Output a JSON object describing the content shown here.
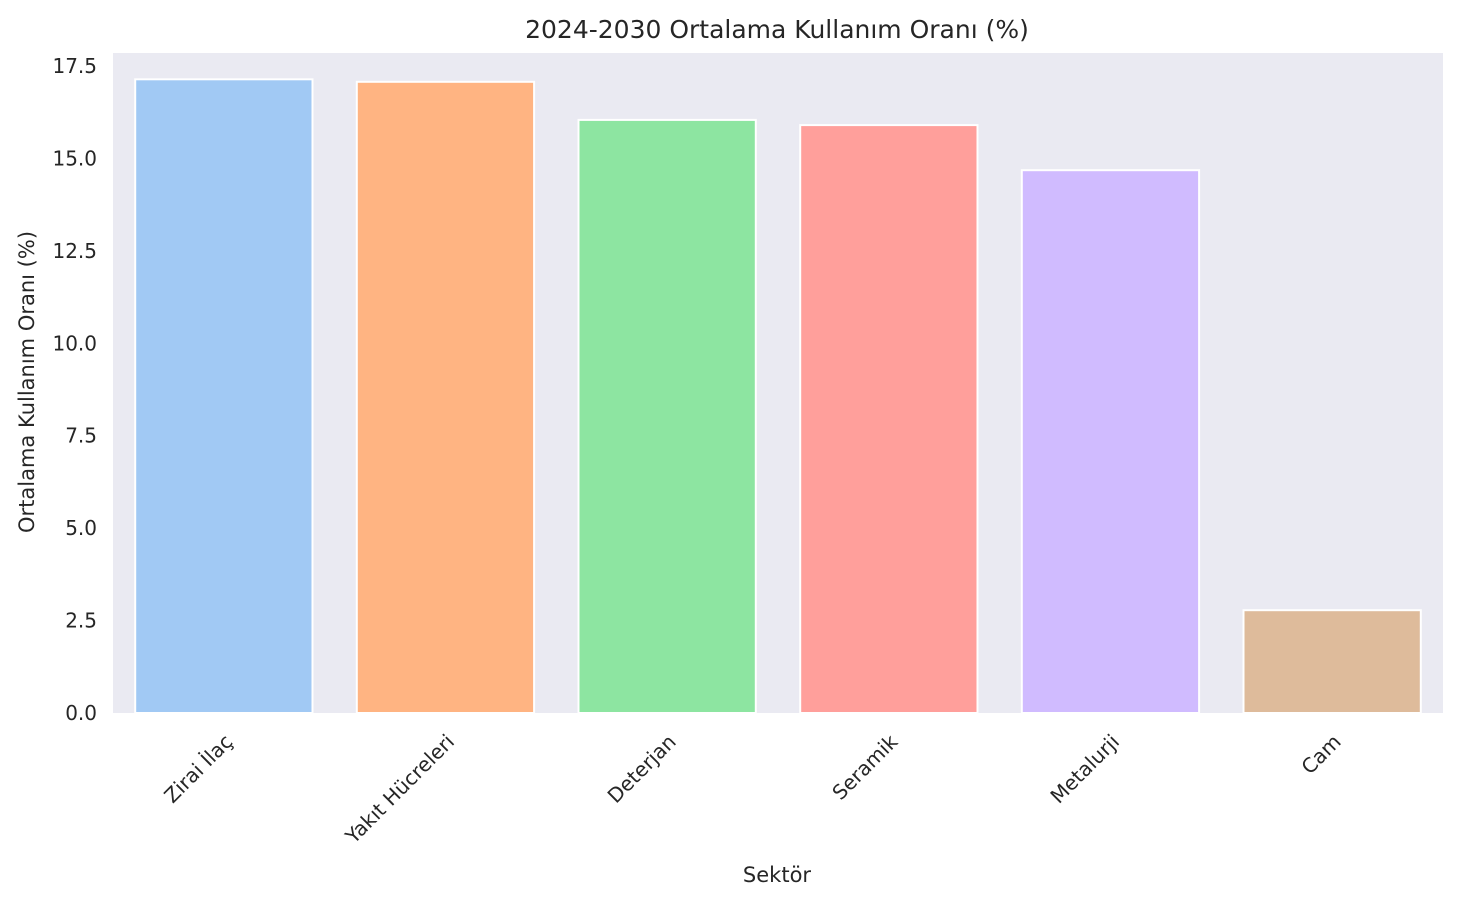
{
  "chart_data": {
    "type": "bar",
    "title": "2024-2030 Ortalama Kullanım Oranı (%)",
    "xlabel": "Sektör",
    "ylabel": "Ortalama Kullanım Oranı (%)",
    "categories": [
      "Zirai İlaç",
      "Yakıt Hücreleri",
      "Deterjan",
      "Seramik",
      "Metalurji",
      "Cam"
    ],
    "values": [
      17.14,
      17.07,
      16.04,
      15.9,
      14.68,
      2.78
    ],
    "colors": [
      "#a1c9f4",
      "#ffb482",
      "#8de5a1",
      "#ff9f9b",
      "#d0bbff",
      "#debb9b"
    ],
    "ylim": [
      0,
      17.5
    ],
    "yticks": [
      "0.0",
      "2.5",
      "5.0",
      "7.5",
      "10.0",
      "12.5",
      "15.0",
      "17.5"
    ],
    "grid": false,
    "plot_background": "#eaeaf2"
  }
}
